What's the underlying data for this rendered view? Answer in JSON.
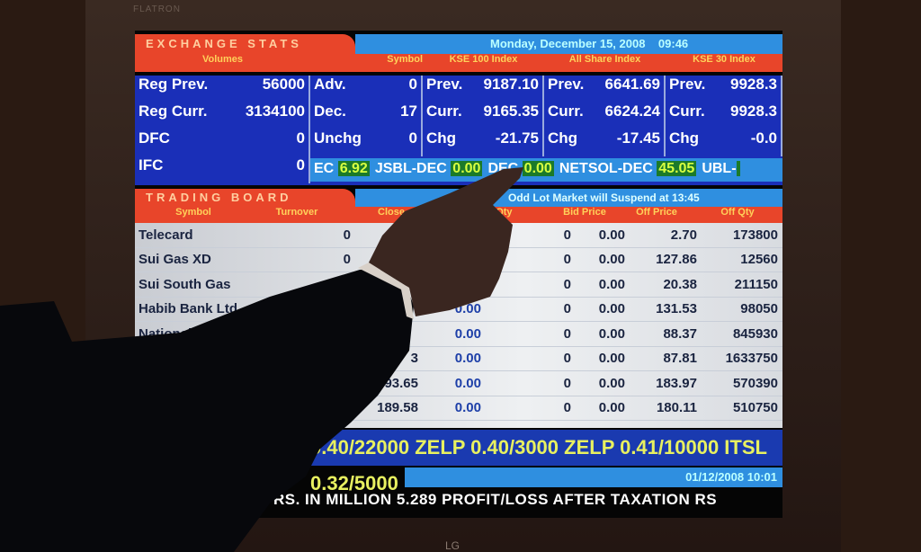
{
  "monitor": {
    "brand": "FLATRON",
    "logo": "LG"
  },
  "exchange": {
    "title": "EXCHANGE STATS",
    "date": "Monday, December 15, 2008",
    "time": "09:46",
    "headers": [
      "Volumes",
      "Symbol",
      "KSE 100 Index",
      "All Share Index",
      "KSE 30 Index"
    ],
    "volumes": [
      [
        "Reg Prev.",
        "56000"
      ],
      [
        "Reg Curr.",
        "3134100"
      ],
      [
        "DFC",
        "0"
      ],
      [
        "IFC",
        "0"
      ]
    ],
    "symbol": [
      [
        "Adv.",
        "0"
      ],
      [
        "Dec.",
        "17"
      ],
      [
        "Unchg",
        "0"
      ]
    ],
    "kse100": [
      [
        "Prev.",
        "9187.10"
      ],
      [
        "Curr.",
        "9165.35"
      ],
      [
        "Chg",
        "-21.75"
      ]
    ],
    "allshare": [
      [
        "Prev.",
        "6641.69"
      ],
      [
        "Curr.",
        "6624.24"
      ],
      [
        "Chg",
        "-17.45"
      ]
    ],
    "kse30": [
      [
        "Prev.",
        "9928.3"
      ],
      [
        "Curr.",
        "9928.3"
      ],
      [
        "Chg",
        "-0.0"
      ]
    ],
    "ticker": [
      [
        "EC",
        "6.92"
      ],
      [
        "JSBL-DEC",
        "0.00"
      ],
      [
        "DEC",
        "0.00"
      ],
      [
        "NETSOL-DEC",
        "45.05"
      ],
      [
        "UBL-",
        ""
      ]
    ]
  },
  "board": {
    "title": "TRADING BOARD",
    "notice": "Odd Lot Market will Suspend at 13:45",
    "headers": [
      "Symbol",
      "Turnover",
      "Close",
      "Bid Qty",
      "Bid Price",
      "Off Price",
      "Off Qty"
    ],
    "rows": [
      {
        "symbol": "Telecard",
        "turnover": "0",
        "close": "",
        "change": "",
        "bid_qty": "0",
        "bid_price": "0.00",
        "off_price": "2.70",
        "off_qty": "173800"
      },
      {
        "symbol": "Sui Gas XD",
        "turnover": "0",
        "close": "",
        "change": "",
        "bid_qty": "0",
        "bid_price": "0.00",
        "off_price": "127.86",
        "off_qty": "12560"
      },
      {
        "symbol": "Sui South Gas",
        "turnover": "",
        "close": "",
        "change": "",
        "bid_qty": "0",
        "bid_price": "0.00",
        "off_price": "20.38",
        "off_qty": "211150"
      },
      {
        "symbol": "Habib Bank Ltd",
        "turnover": "",
        "close": "",
        "change": "0.00",
        "bid_qty": "0",
        "bid_price": "0.00",
        "off_price": "131.53",
        "off_qty": "98050"
      },
      {
        "symbol": "National B",
        "turnover": "",
        "close": "",
        "change": "0.00",
        "bid_qty": "0",
        "bid_price": "0.00",
        "off_price": "88.37",
        "off_qty": "845930"
      },
      {
        "symbol": "",
        "turnover": "",
        "close": "3",
        "change": "0.00",
        "bid_qty": "0",
        "bid_price": "0.00",
        "off_price": "87.81",
        "off_qty": "1633750"
      },
      {
        "symbol": "",
        "turnover": "",
        "close": "93.65",
        "change": "0.00",
        "bid_qty": "0",
        "bid_price": "0.00",
        "off_price": "183.97",
        "off_qty": "570390"
      },
      {
        "symbol": "",
        "turnover": "0",
        "close": "189.58",
        "change": "0.00",
        "bid_qty": "0",
        "bid_price": "0.00",
        "off_price": "180.11",
        "off_qty": "510750"
      }
    ]
  },
  "ticker2": "0.40/22000 ZELP 0.40/3000 ZELP 0.41/10000 ITSL 0.32/5000",
  "footer": {
    "left": "battery",
    "datetime": "01/12/2008 10:01",
    "news": "AXATION RS. IN MILLION 5.289 PROFIT/LOSS AFTER TAXATION RS"
  }
}
